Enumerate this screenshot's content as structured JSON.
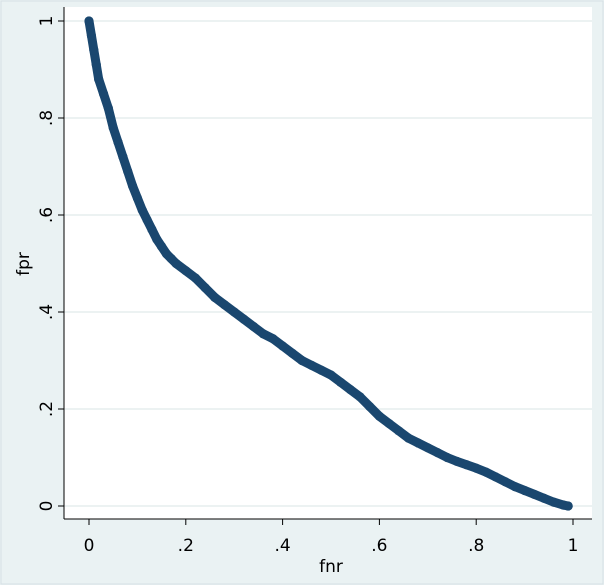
{
  "chart_data": {
    "type": "scatter",
    "title": "",
    "xlabel": "fnr",
    "ylabel": "fpr",
    "xlim": [
      0,
      1
    ],
    "ylim": [
      0,
      1
    ],
    "xticks": [
      {
        "value": 0,
        "label": "0"
      },
      {
        "value": 0.2,
        "label": ".2"
      },
      {
        "value": 0.4,
        "label": ".4"
      },
      {
        "value": 0.6,
        "label": ".6"
      },
      {
        "value": 0.8,
        "label": ".8"
      },
      {
        "value": 1,
        "label": "1"
      }
    ],
    "yticks": [
      {
        "value": 0,
        "label": "0"
      },
      {
        "value": 0.2,
        "label": ".2"
      },
      {
        "value": 0.4,
        "label": ".4"
      },
      {
        "value": 0.6,
        "label": ".6"
      },
      {
        "value": 0.8,
        "label": ".8"
      },
      {
        "value": 1,
        "label": "1"
      }
    ],
    "grid": true,
    "marker_color": "#1a476f",
    "series": [
      {
        "name": "fpr",
        "x": [
          0,
          0.005,
          0.01,
          0.015,
          0.02,
          0.03,
          0.04,
          0.05,
          0.06,
          0.07,
          0.08,
          0.09,
          0.1,
          0.11,
          0.12,
          0.13,
          0.14,
          0.15,
          0.16,
          0.17,
          0.18,
          0.2,
          0.22,
          0.24,
          0.26,
          0.28,
          0.3,
          0.32,
          0.34,
          0.36,
          0.38,
          0.4,
          0.42,
          0.44,
          0.46,
          0.48,
          0.5,
          0.52,
          0.54,
          0.56,
          0.58,
          0.6,
          0.62,
          0.64,
          0.66,
          0.68,
          0.7,
          0.72,
          0.74,
          0.76,
          0.78,
          0.8,
          0.82,
          0.84,
          0.86,
          0.88,
          0.9,
          0.92,
          0.94,
          0.96,
          0.98,
          0.99
        ],
        "y": [
          1,
          0.97,
          0.94,
          0.91,
          0.88,
          0.85,
          0.82,
          0.78,
          0.75,
          0.72,
          0.69,
          0.66,
          0.635,
          0.61,
          0.59,
          0.57,
          0.55,
          0.535,
          0.52,
          0.51,
          0.5,
          0.485,
          0.47,
          0.45,
          0.43,
          0.415,
          0.4,
          0.385,
          0.37,
          0.355,
          0.345,
          0.33,
          0.315,
          0.3,
          0.29,
          0.28,
          0.27,
          0.255,
          0.24,
          0.225,
          0.205,
          0.185,
          0.17,
          0.155,
          0.14,
          0.13,
          0.12,
          0.11,
          0.1,
          0.092,
          0.085,
          0.078,
          0.07,
          0.06,
          0.05,
          0.04,
          0.032,
          0.024,
          0.016,
          0.008,
          0.002,
          0
        ]
      }
    ]
  }
}
